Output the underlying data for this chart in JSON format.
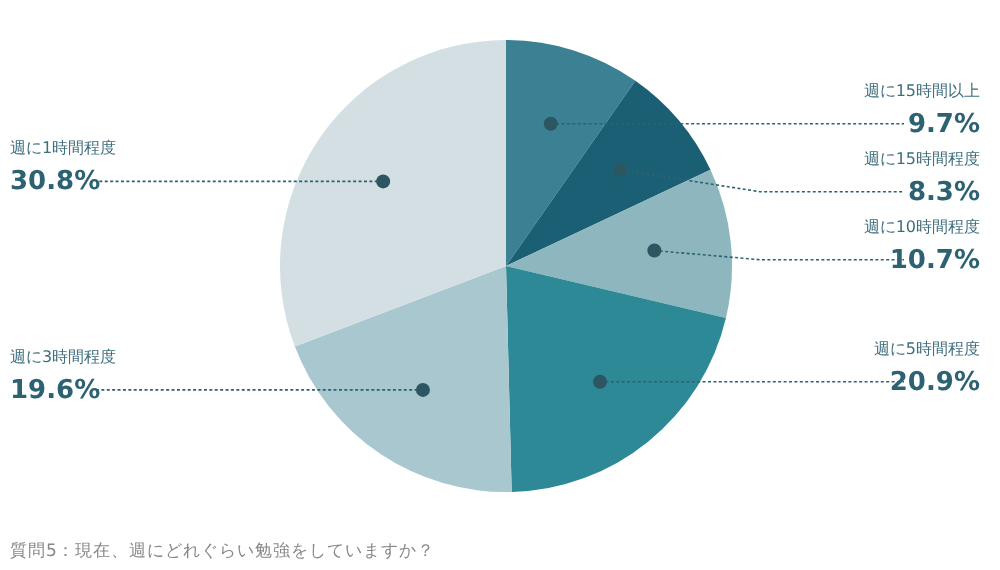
{
  "chart_data": {
    "type": "pie",
    "categories": [
      "週に15時間以上",
      "週に15時間程度",
      "週に10時間程度",
      "週に5時間程度",
      "週に3時間程度",
      "週に1時間程度"
    ],
    "values": [
      9.7,
      8.3,
      10.7,
      20.9,
      19.6,
      30.8
    ],
    "value_labels": [
      "9.7%",
      "8.3%",
      "10.7%",
      "20.9%",
      "19.6%",
      "30.8%"
    ],
    "colors": [
      "#3b8093",
      "#1b5f74",
      "#8db6bf",
      "#2e8996",
      "#a9c7cf",
      "#d3dfe3"
    ],
    "annotations": [
      "質問5：現在、週にどれぐらい勉強をしていますか？"
    ]
  }
}
